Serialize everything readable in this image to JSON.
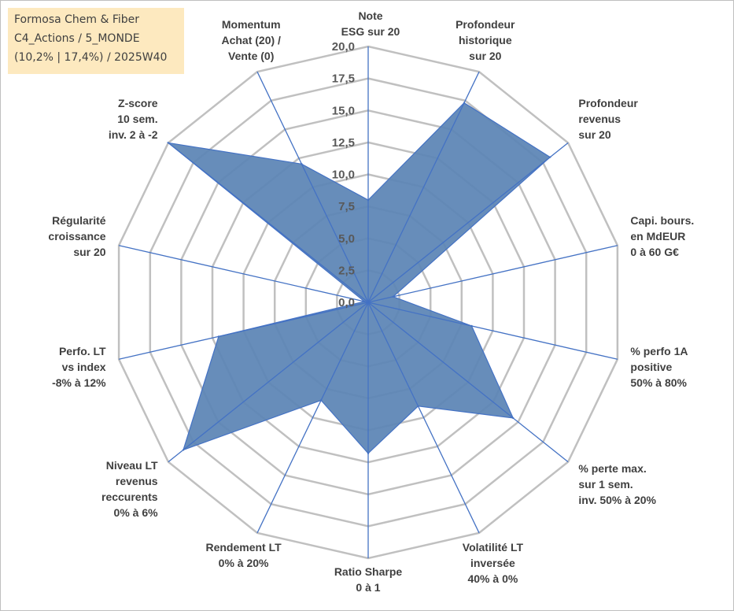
{
  "info": {
    "company": "Formosa Chem & Fiber",
    "portfolio": "C4_Actions / 5_MONDE",
    "stats": "(10,2% | 17,4%) / 2025W40"
  },
  "colors": {
    "fill": "#5b84b5",
    "stroke": "#4472c4",
    "spoke": "#4472c4",
    "grid": "#c0c0c0",
    "text": "#404040"
  },
  "chart_data": {
    "type": "radar",
    "title": "",
    "range": [
      0,
      20
    ],
    "ticks": [
      "0,0",
      "2,5",
      "5,0",
      "7,5",
      "10,0",
      "12,5",
      "15,0",
      "17,5",
      "20,0"
    ],
    "axes": [
      {
        "label": [
          "Note",
          "ESG sur 20"
        ]
      },
      {
        "label": [
          "Profondeur",
          "historique",
          "sur 20"
        ]
      },
      {
        "label": [
          "Profondeur",
          "revenus",
          "sur 20"
        ]
      },
      {
        "label": [
          "Capi. bours.",
          "en MdEUR",
          "0 à 60 G€"
        ]
      },
      {
        "label": [
          "% perfo 1A",
          "positive",
          "50% à 80%"
        ]
      },
      {
        "label": [
          "% perte max.",
          "sur 1 sem.",
          "inv. 50% à 20%"
        ]
      },
      {
        "label": [
          "Volatilité LT",
          "inversée",
          "40% à 0%"
        ]
      },
      {
        "label": [
          "Ratio Sharpe",
          "0 à 1"
        ]
      },
      {
        "label": [
          "Rendement LT",
          "0% à 20%"
        ]
      },
      {
        "label": [
          "Niveau LT",
          "revenus",
          "reccurents",
          "0% à 6%"
        ]
      },
      {
        "label": [
          "Perfo. LT",
          "vs index",
          "-8% à 12%"
        ]
      },
      {
        "label": [
          "Régularité",
          "croissance",
          "sur 20"
        ]
      },
      {
        "label": [
          "Z-score",
          "10 sem.",
          "inv. 2 à -2"
        ]
      },
      {
        "label": [
          "Momentum",
          "Achat (20) /",
          "Vente (0)"
        ]
      }
    ],
    "series": [
      {
        "name": "Formosa Chem & Fiber",
        "values": [
          8.0,
          17.3,
          18.2,
          2.0,
          8.3,
          14.5,
          9.0,
          11.8,
          8.5,
          18.5,
          12.0,
          0.3,
          20.0,
          12.0
        ]
      }
    ]
  }
}
